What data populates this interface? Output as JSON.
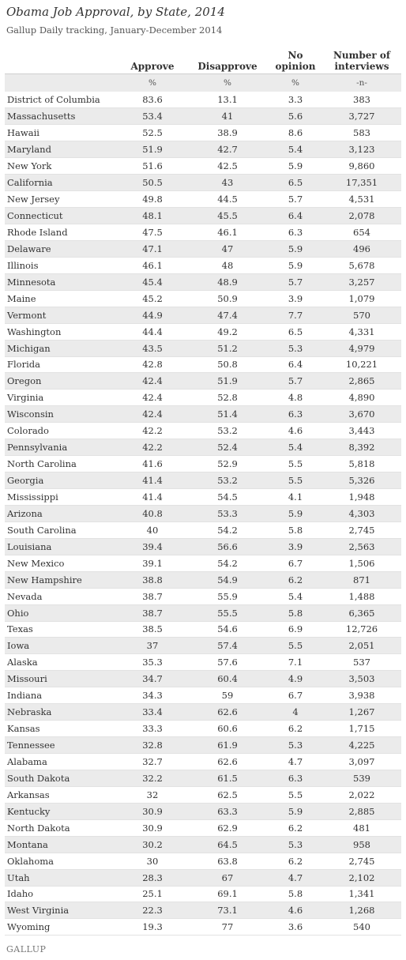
{
  "title": "Obama Job Approval, by State, 2014",
  "subtitle": "Gallup Daily tracking, January-December 2014",
  "logo": "GALLUP",
  "chart_data": {
    "type": "table",
    "title": "Obama Job Approval, by State, 2014",
    "subtitle": "Gallup Daily tracking, January-December 2014",
    "columns": [
      {
        "line1": "",
        "line2": "Approve",
        "unit": "%"
      },
      {
        "line1": "",
        "line2": "Disapprove",
        "unit": "%"
      },
      {
        "line1": "No",
        "line2": "opinion",
        "unit": "%"
      },
      {
        "line1": "Number of",
        "line2": "interviews",
        "unit": "-n-"
      }
    ],
    "rows": [
      {
        "state": "District of Columbia",
        "approve": "83.6",
        "disapprove": "13.1",
        "no_opinion": "3.3",
        "n": "383"
      },
      {
        "state": "Massachusetts",
        "approve": "53.4",
        "disapprove": "41",
        "no_opinion": "5.6",
        "n": "3,727"
      },
      {
        "state": "Hawaii",
        "approve": "52.5",
        "disapprove": "38.9",
        "no_opinion": "8.6",
        "n": "583"
      },
      {
        "state": "Maryland",
        "approve": "51.9",
        "disapprove": "42.7",
        "no_opinion": "5.4",
        "n": "3,123"
      },
      {
        "state": "New York",
        "approve": "51.6",
        "disapprove": "42.5",
        "no_opinion": "5.9",
        "n": "9,860"
      },
      {
        "state": "California",
        "approve": "50.5",
        "disapprove": "43",
        "no_opinion": "6.5",
        "n": "17,351"
      },
      {
        "state": "New Jersey",
        "approve": "49.8",
        "disapprove": "44.5",
        "no_opinion": "5.7",
        "n": "4,531"
      },
      {
        "state": "Connecticut",
        "approve": "48.1",
        "disapprove": "45.5",
        "no_opinion": "6.4",
        "n": "2,078"
      },
      {
        "state": "Rhode Island",
        "approve": "47.5",
        "disapprove": "46.1",
        "no_opinion": "6.3",
        "n": "654"
      },
      {
        "state": "Delaware",
        "approve": "47.1",
        "disapprove": "47",
        "no_opinion": "5.9",
        "n": "496"
      },
      {
        "state": "Illinois",
        "approve": "46.1",
        "disapprove": "48",
        "no_opinion": "5.9",
        "n": "5,678"
      },
      {
        "state": "Minnesota",
        "approve": "45.4",
        "disapprove": "48.9",
        "no_opinion": "5.7",
        "n": "3,257"
      },
      {
        "state": "Maine",
        "approve": "45.2",
        "disapprove": "50.9",
        "no_opinion": "3.9",
        "n": "1,079"
      },
      {
        "state": "Vermont",
        "approve": "44.9",
        "disapprove": "47.4",
        "no_opinion": "7.7",
        "n": "570"
      },
      {
        "state": "Washington",
        "approve": "44.4",
        "disapprove": "49.2",
        "no_opinion": "6.5",
        "n": "4,331"
      },
      {
        "state": "Michigan",
        "approve": "43.5",
        "disapprove": "51.2",
        "no_opinion": "5.3",
        "n": "4,979"
      },
      {
        "state": "Florida",
        "approve": "42.8",
        "disapprove": "50.8",
        "no_opinion": "6.4",
        "n": "10,221"
      },
      {
        "state": "Oregon",
        "approve": "42.4",
        "disapprove": "51.9",
        "no_opinion": "5.7",
        "n": "2,865"
      },
      {
        "state": "Virginia",
        "approve": "42.4",
        "disapprove": "52.8",
        "no_opinion": "4.8",
        "n": "4,890"
      },
      {
        "state": "Wisconsin",
        "approve": "42.4",
        "disapprove": "51.4",
        "no_opinion": "6.3",
        "n": "3,670"
      },
      {
        "state": "Colorado",
        "approve": "42.2",
        "disapprove": "53.2",
        "no_opinion": "4.6",
        "n": "3,443"
      },
      {
        "state": "Pennsylvania",
        "approve": "42.2",
        "disapprove": "52.4",
        "no_opinion": "5.4",
        "n": "8,392"
      },
      {
        "state": "North Carolina",
        "approve": "41.6",
        "disapprove": "52.9",
        "no_opinion": "5.5",
        "n": "5,818"
      },
      {
        "state": "Georgia",
        "approve": "41.4",
        "disapprove": "53.2",
        "no_opinion": "5.5",
        "n": "5,326"
      },
      {
        "state": "Mississippi",
        "approve": "41.4",
        "disapprove": "54.5",
        "no_opinion": "4.1",
        "n": "1,948"
      },
      {
        "state": "Arizona",
        "approve": "40.8",
        "disapprove": "53.3",
        "no_opinion": "5.9",
        "n": "4,303"
      },
      {
        "state": "South Carolina",
        "approve": "40",
        "disapprove": "54.2",
        "no_opinion": "5.8",
        "n": "2,745"
      },
      {
        "state": "Louisiana",
        "approve": "39.4",
        "disapprove": "56.6",
        "no_opinion": "3.9",
        "n": "2,563"
      },
      {
        "state": "New Mexico",
        "approve": "39.1",
        "disapprove": "54.2",
        "no_opinion": "6.7",
        "n": "1,506"
      },
      {
        "state": "New Hampshire",
        "approve": "38.8",
        "disapprove": "54.9",
        "no_opinion": "6.2",
        "n": "871"
      },
      {
        "state": "Nevada",
        "approve": "38.7",
        "disapprove": "55.9",
        "no_opinion": "5.4",
        "n": "1,488"
      },
      {
        "state": "Ohio",
        "approve": "38.7",
        "disapprove": "55.5",
        "no_opinion": "5.8",
        "n": "6,365"
      },
      {
        "state": "Texas",
        "approve": "38.5",
        "disapprove": "54.6",
        "no_opinion": "6.9",
        "n": "12,726"
      },
      {
        "state": "Iowa",
        "approve": "37",
        "disapprove": "57.4",
        "no_opinion": "5.5",
        "n": "2,051"
      },
      {
        "state": "Alaska",
        "approve": "35.3",
        "disapprove": "57.6",
        "no_opinion": "7.1",
        "n": "537"
      },
      {
        "state": "Missouri",
        "approve": "34.7",
        "disapprove": "60.4",
        "no_opinion": "4.9",
        "n": "3,503"
      },
      {
        "state": "Indiana",
        "approve": "34.3",
        "disapprove": "59",
        "no_opinion": "6.7",
        "n": "3,938"
      },
      {
        "state": "Nebraska",
        "approve": "33.4",
        "disapprove": "62.6",
        "no_opinion": "4",
        "n": "1,267"
      },
      {
        "state": "Kansas",
        "approve": "33.3",
        "disapprove": "60.6",
        "no_opinion": "6.2",
        "n": "1,715"
      },
      {
        "state": "Tennessee",
        "approve": "32.8",
        "disapprove": "61.9",
        "no_opinion": "5.3",
        "n": "4,225"
      },
      {
        "state": "Alabama",
        "approve": "32.7",
        "disapprove": "62.6",
        "no_opinion": "4.7",
        "n": "3,097"
      },
      {
        "state": "South Dakota",
        "approve": "32.2",
        "disapprove": "61.5",
        "no_opinion": "6.3",
        "n": "539"
      },
      {
        "state": "Arkansas",
        "approve": "32",
        "disapprove": "62.5",
        "no_opinion": "5.5",
        "n": "2,022"
      },
      {
        "state": "Kentucky",
        "approve": "30.9",
        "disapprove": "63.3",
        "no_opinion": "5.9",
        "n": "2,885"
      },
      {
        "state": "North Dakota",
        "approve": "30.9",
        "disapprove": "62.9",
        "no_opinion": "6.2",
        "n": "481"
      },
      {
        "state": "Montana",
        "approve": "30.2",
        "disapprove": "64.5",
        "no_opinion": "5.3",
        "n": "958"
      },
      {
        "state": "Oklahoma",
        "approve": "30",
        "disapprove": "63.8",
        "no_opinion": "6.2",
        "n": "2,745"
      },
      {
        "state": "Utah",
        "approve": "28.3",
        "disapprove": "67",
        "no_opinion": "4.7",
        "n": "2,102"
      },
      {
        "state": "Idaho",
        "approve": "25.1",
        "disapprove": "69.1",
        "no_opinion": "5.8",
        "n": "1,341"
      },
      {
        "state": "West Virginia",
        "approve": "22.3",
        "disapprove": "73.1",
        "no_opinion": "4.6",
        "n": "1,268"
      },
      {
        "state": "Wyoming",
        "approve": "19.3",
        "disapprove": "77",
        "no_opinion": "3.6",
        "n": "540"
      }
    ]
  }
}
